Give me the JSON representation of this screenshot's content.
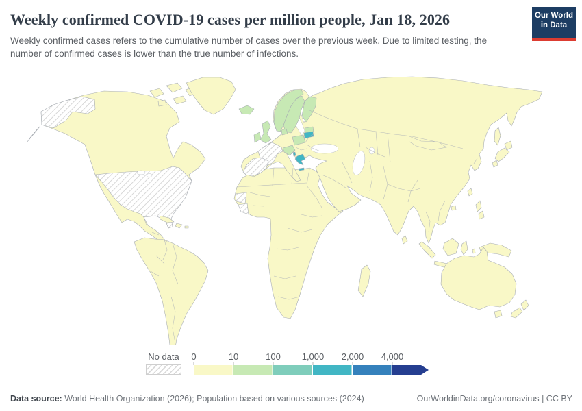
{
  "header": {
    "title": "Weekly confirmed COVID-19 cases per million people, Jan 18, 2026",
    "subtitle": "Weekly confirmed cases refers to the cumulative number of cases over the previous week. Due to limited testing, the number of confirmed cases is lower than the true number of infections.",
    "logo": {
      "line1": "Our World",
      "line2": "in Data"
    }
  },
  "legend": {
    "no_data_label": "No data",
    "tick_labels": [
      "0",
      "10",
      "100",
      "1,000",
      "2,000",
      "4,000"
    ],
    "colors": [
      "#f9f8c7",
      "#c7e9b4",
      "#7fcdbb",
      "#41b6c4",
      "#3581bc",
      "#253e90"
    ]
  },
  "chart_data": {
    "type": "choropleth_map",
    "metric": "Weekly confirmed COVID-19 cases per million people",
    "date": "Jan 18, 2026",
    "bins": [
      {
        "range": "0-10",
        "color": "#f9f8c7"
      },
      {
        "range": "10-100",
        "color": "#c7e9b4"
      },
      {
        "range": "100-1,000",
        "color": "#7fcdbb"
      },
      {
        "range": "1,000-2,000",
        "color": "#41b6c4"
      },
      {
        "range": "2,000-4,000",
        "color": "#3581bc"
      },
      {
        "range": "4,000+",
        "color": "#253e90"
      },
      {
        "range": "No data",
        "color": "hatched"
      }
    ],
    "regions_by_color": {
      "no_data": [
        "United States",
        "Alaska (US)",
        "France",
        "Switzerland",
        "Spain",
        "Portugal",
        "Western Sahara",
        "Cote d'Ivoire"
      ],
      "bin_10_100_green": [
        "Iceland",
        "Ireland",
        "United Kingdom",
        "Norway",
        "Sweden",
        "Finland",
        "Denmark",
        "Poland",
        "Latvia",
        "Austria",
        "Croatia"
      ],
      "bin_1000_2000_teal": [
        "Lithuania",
        "Greece",
        "Albania"
      ],
      "bin_0_10_pale_yellow": "Most remaining countries (Canada, Greenland, Mexico, South America, Africa, Russia, China, India, Middle East, Southeast Asia, Australia, New Zealand, Japan)"
    }
  },
  "footer": {
    "source_label": "Data source:",
    "source_text": " World Health Organization (2026); Population based on various sources (2024)",
    "credit": "OurWorldinData.org/coronavirus | CC BY"
  },
  "colors": {
    "title": "#333d49",
    "text": "#5b5f64",
    "logo_bg": "#1d3d63",
    "logo_accent": "#dc3c31",
    "border": "#a8adb3"
  }
}
